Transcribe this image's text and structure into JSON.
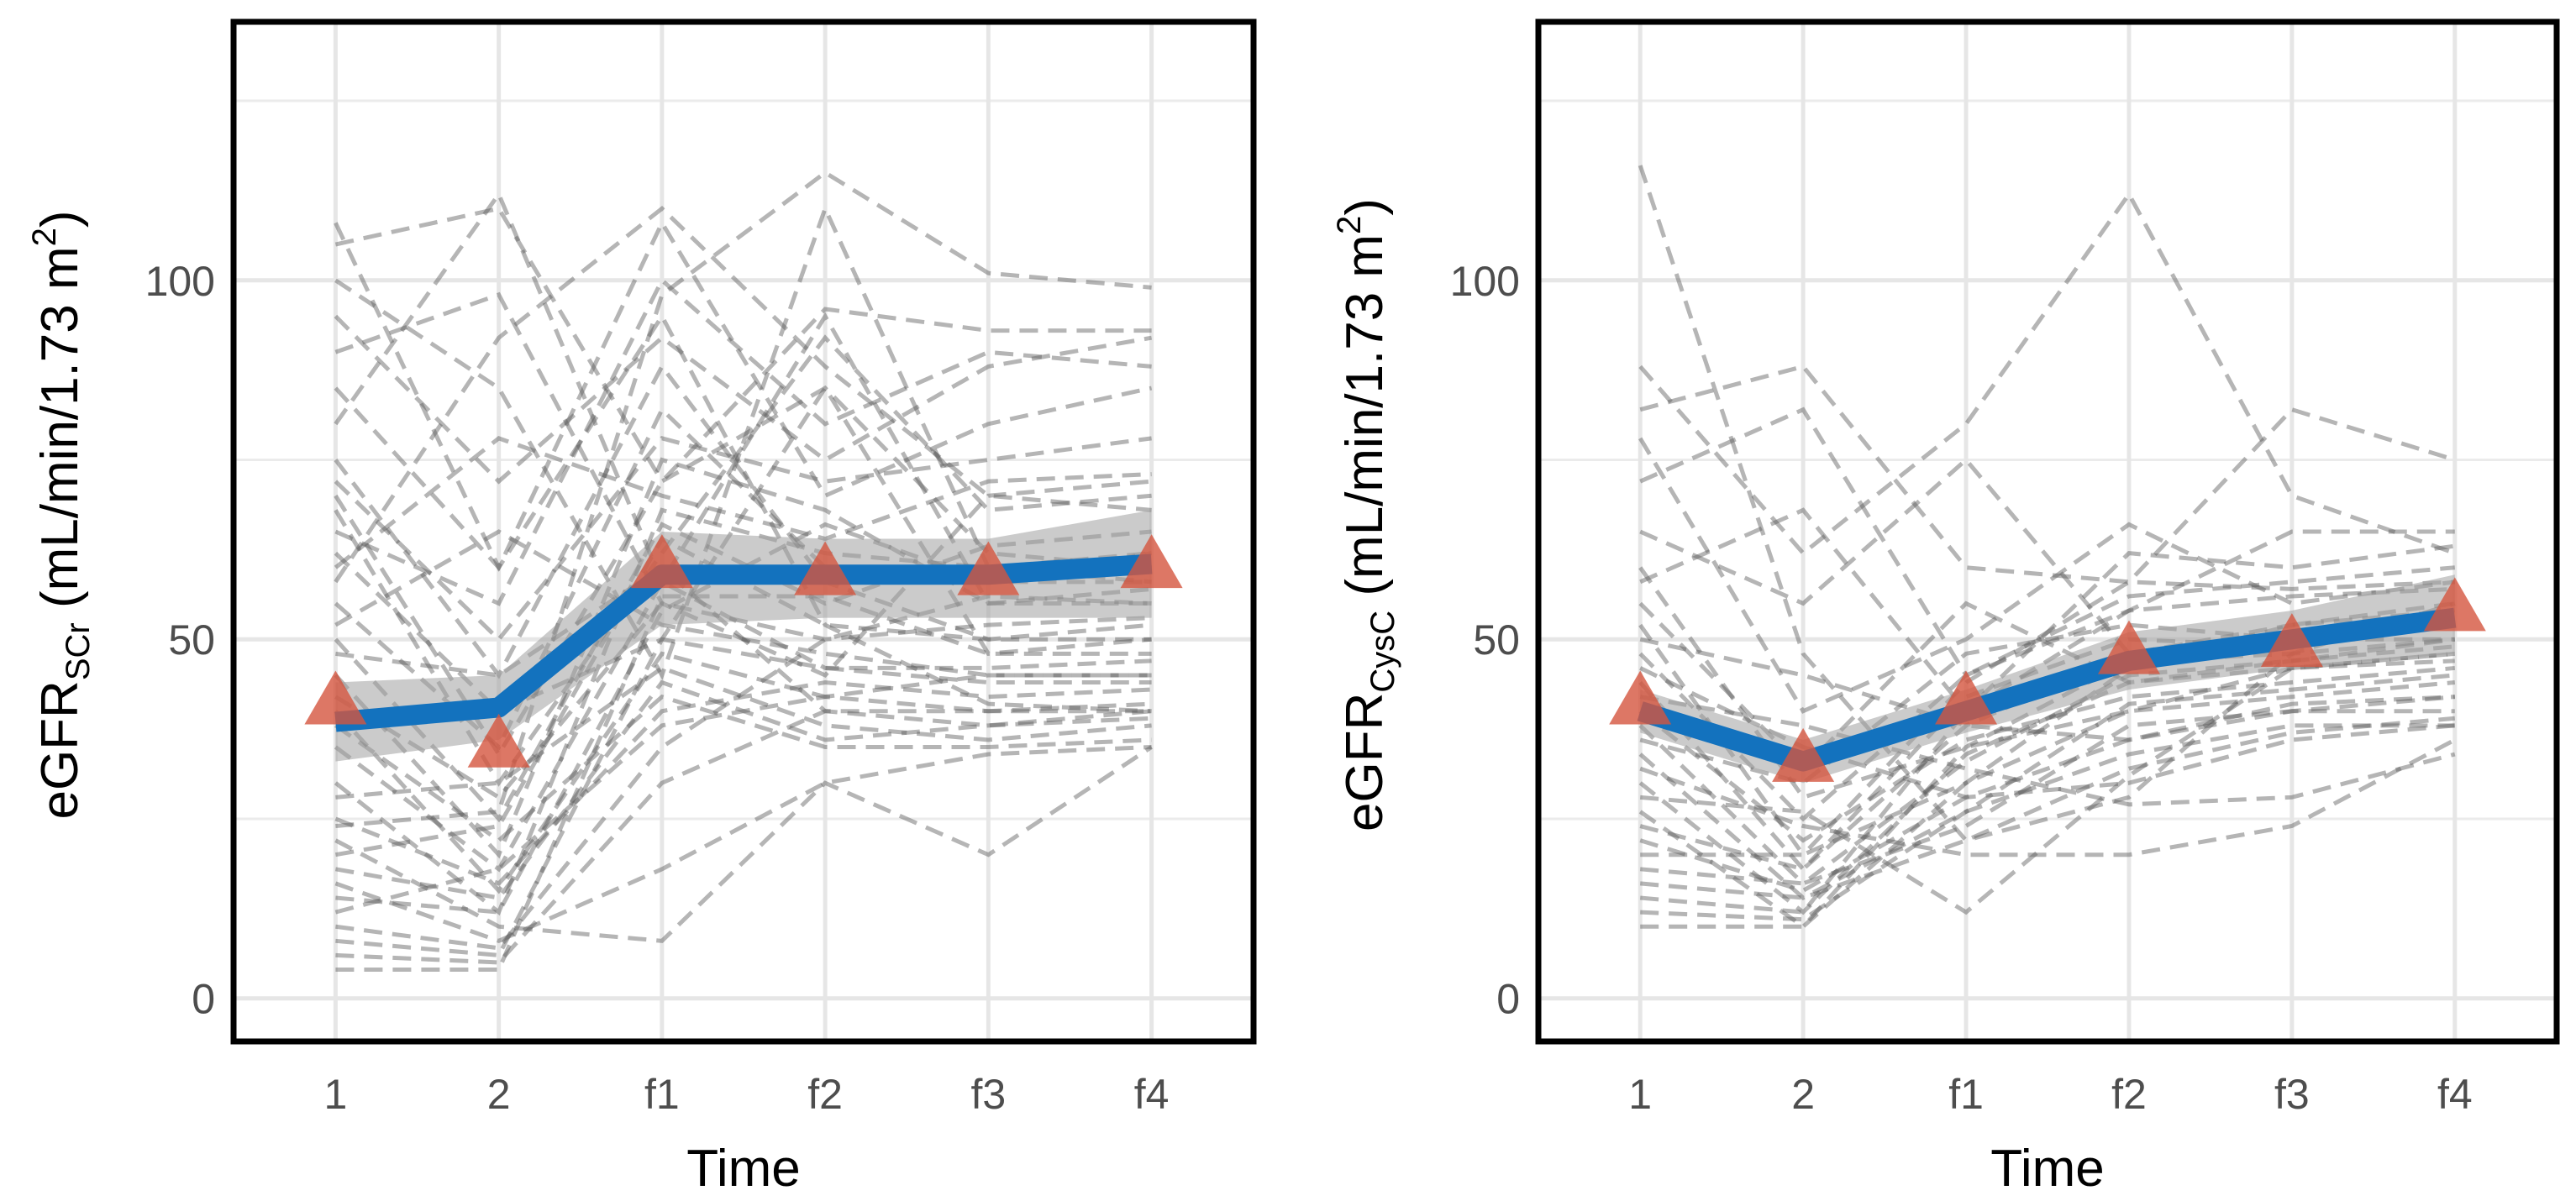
{
  "chart_data": [
    {
      "type": "line",
      "panel": "left",
      "xlabel": "Time",
      "ylabel": {
        "prefix": "eGFR",
        "subscript": "SCr",
        "units_open": " (mL/min/1.73 m",
        "units_sup": "2",
        "units_close": ")"
      },
      "categories": [
        "1",
        "2",
        "f1",
        "f2",
        "f3",
        "f4"
      ],
      "yticks": [
        "0",
        "50",
        "100"
      ],
      "ylim": [
        -6,
        136
      ],
      "grid": true,
      "series": [
        {
          "name": "mean trend",
          "style": "thick-blue-line",
          "color": "#1372BE",
          "values": [
            38.5,
            40.5,
            59,
            59,
            59,
            60.5
          ]
        },
        {
          "name": "95% CI upper",
          "values": [
            44,
            45,
            65,
            64,
            64,
            68
          ]
        },
        {
          "name": "95% CI lower",
          "values": [
            33,
            36,
            52,
            53,
            53,
            53
          ]
        },
        {
          "name": "observed median",
          "style": "triangle-marker",
          "color": "#D4553E",
          "values": [
            41,
            35,
            60,
            59,
            59,
            60
          ]
        }
      ],
      "individual_trajectories": [
        [
          108,
          60,
          95,
          52,
          41,
          40
        ],
        [
          105,
          110,
          72,
          85,
          62,
          60
        ],
        [
          100,
          85,
          45,
          110,
          60,
          58
        ],
        [
          95,
          72,
          92,
          75,
          88,
          92
        ],
        [
          90,
          98,
          55,
          45,
          70,
          72
        ],
        [
          85,
          60,
          108,
          70,
          80,
          85
        ],
        [
          80,
          112,
          58,
          95,
          55,
          55
        ],
        [
          75,
          45,
          88,
          58,
          50,
          52
        ],
        [
          72,
          50,
          78,
          72,
          75,
          78
        ],
        [
          68,
          30,
          62,
          92,
          68,
          70
        ],
        [
          65,
          55,
          100,
          80,
          90,
          88
        ],
        [
          62,
          40,
          50,
          85,
          48,
          50
        ],
        [
          60,
          78,
          70,
          64,
          72,
          73
        ],
        [
          55,
          35,
          82,
          60,
          58,
          62
        ],
        [
          52,
          65,
          52,
          48,
          45,
          45
        ],
        [
          50,
          25,
          66,
          55,
          63,
          65
        ],
        [
          48,
          45,
          60,
          40,
          38,
          40
        ],
        [
          45,
          20,
          75,
          68,
          55,
          57
        ],
        [
          42,
          28,
          55,
          50,
          52,
          53
        ],
        [
          40,
          15,
          48,
          42,
          40,
          40
        ],
        [
          38,
          22,
          42,
          35,
          35,
          36
        ],
        [
          35,
          18,
          58,
          46,
          46,
          47
        ],
        [
          30,
          12,
          68,
          62,
          60,
          62
        ],
        [
          28,
          30,
          46,
          38,
          36,
          38
        ],
        [
          25,
          16,
          40,
          44,
          42,
          43
        ],
        [
          22,
          10,
          8,
          30,
          20,
          35
        ],
        [
          20,
          24,
          64,
          52,
          50,
          50
        ],
        [
          18,
          14,
          44,
          36,
          38,
          39
        ],
        [
          16,
          8,
          18,
          30,
          34,
          35
        ],
        [
          14,
          12,
          54,
          66,
          58,
          58
        ],
        [
          12,
          18,
          38,
          42,
          45,
          45
        ],
        [
          10,
          7,
          35,
          50,
          56,
          55
        ],
        [
          8,
          6,
          50,
          46,
          44,
          44
        ],
        [
          6,
          5,
          30,
          40,
          40,
          41
        ],
        [
          4,
          4,
          56,
          56,
          48,
          48
        ],
        [
          24,
          26,
          98,
          115,
          101,
          99
        ],
        [
          58,
          92,
          110,
          88,
          70,
          68
        ],
        [
          70,
          34,
          72,
          96,
          93,
          93
        ]
      ]
    },
    {
      "type": "line",
      "panel": "right",
      "xlabel": "Time",
      "ylabel": {
        "prefix": "eGFR",
        "subscript": "CysC",
        "units_open": " (mL/min/1.73 m",
        "units_sup": "2",
        "units_close": ")"
      },
      "categories": [
        "1",
        "2",
        "f1",
        "f2",
        "f3",
        "f4"
      ],
      "yticks": [
        "0",
        "50",
        "100"
      ],
      "ylim": [
        -6,
        136
      ],
      "grid": true,
      "series": [
        {
          "name": "mean trend",
          "style": "thick-blue-line",
          "color": "#1372BE",
          "values": [
            40,
            33,
            40,
            47,
            50,
            53
          ]
        },
        {
          "name": "95% CI upper",
          "values": [
            43,
            36,
            43,
            51,
            54,
            59
          ]
        },
        {
          "name": "95% CI lower",
          "values": [
            37,
            30,
            37,
            43,
            46,
            48
          ]
        },
        {
          "name": "observed median",
          "style": "triangle-marker",
          "color": "#D4553E",
          "values": [
            41,
            33,
            41,
            48,
            49,
            54
          ]
        }
      ],
      "individual_trajectories": [
        [
          116,
          48,
          22,
          28,
          48,
          55
        ],
        [
          88,
          62,
          80,
          112,
          70,
          62
        ],
        [
          82,
          88,
          60,
          58,
          82,
          75
        ],
        [
          78,
          40,
          50,
          66,
          55,
          58
        ],
        [
          72,
          82,
          45,
          54,
          65,
          65
        ],
        [
          65,
          55,
          75,
          48,
          50,
          50
        ],
        [
          60,
          28,
          35,
          40,
          46,
          48
        ],
        [
          58,
          68,
          40,
          62,
          60,
          63
        ],
        [
          55,
          32,
          55,
          44,
          47,
          50
        ],
        [
          52,
          20,
          30,
          46,
          52,
          55
        ],
        [
          50,
          45,
          38,
          36,
          40,
          42
        ],
        [
          48,
          25,
          45,
          56,
          58,
          60
        ],
        [
          46,
          35,
          28,
          30,
          36,
          38
        ],
        [
          44,
          18,
          42,
          50,
          49,
          52
        ],
        [
          42,
          38,
          32,
          27,
          28,
          34
        ],
        [
          40,
          22,
          36,
          42,
          44,
          46
        ],
        [
          38,
          16,
          24,
          38,
          40,
          40
        ],
        [
          36,
          30,
          48,
          52,
          50,
          52
        ],
        [
          34,
          14,
          26,
          34,
          38,
          38
        ],
        [
          32,
          24,
          20,
          20,
          24,
          36
        ],
        [
          30,
          12,
          34,
          44,
          46,
          48
        ],
        [
          28,
          26,
          12,
          31,
          46,
          47
        ],
        [
          26,
          10,
          30,
          40,
          42,
          44
        ],
        [
          24,
          18,
          38,
          48,
          52,
          54
        ],
        [
          22,
          15,
          28,
          36,
          41,
          42
        ],
        [
          20,
          20,
          44,
          58,
          57,
          58
        ],
        [
          18,
          16,
          33,
          45,
          47,
          49
        ],
        [
          16,
          14,
          22,
          32,
          37,
          39
        ],
        [
          14,
          12,
          40,
          54,
          56,
          57
        ],
        [
          12,
          11,
          26,
          41,
          43,
          45
        ],
        [
          10,
          10,
          35,
          47,
          48,
          50
        ]
      ]
    }
  ]
}
